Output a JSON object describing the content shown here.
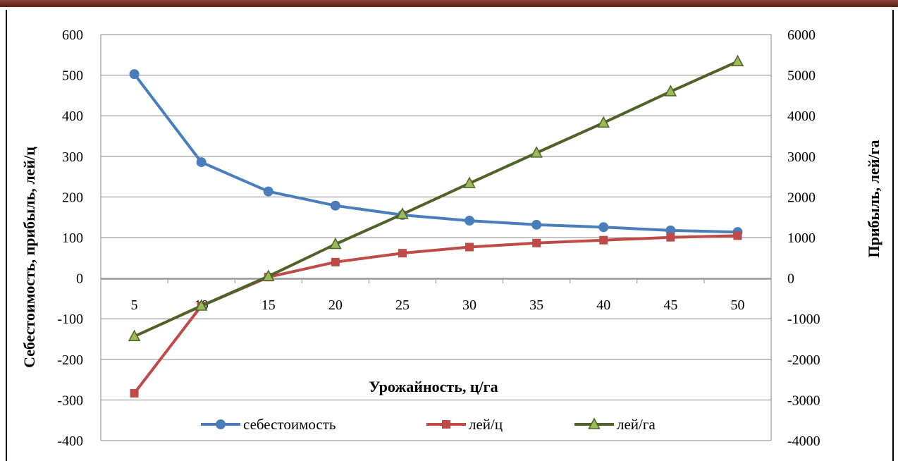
{
  "chart_data": {
    "type": "line",
    "x": [
      5,
      10,
      15,
      20,
      25,
      30,
      35,
      40,
      45,
      50
    ],
    "xlabel": "Урожайность, ц/га",
    "ylabel_left": "Себестоимость, прибыль, лей/ц",
    "ylabel_right": "Прибыль, лей/га",
    "ylim_left": [
      -400,
      600
    ],
    "ylim_right": [
      -4000,
      6000
    ],
    "yticks_left": [
      "600",
      "500",
      "400",
      "300",
      "200",
      "100",
      "0",
      "-100",
      "-200",
      "-300",
      "-400"
    ],
    "yticks_right": [
      "6000",
      "5000",
      "4000",
      "3000",
      "2000",
      "1000",
      "0",
      "-1000",
      "-2000",
      "-3000",
      "-4000"
    ],
    "xticks": [
      "5",
      "10",
      "15",
      "20",
      "25",
      "30",
      "35",
      "40",
      "45",
      "50"
    ],
    "grid": "horizontal",
    "legend_position": "bottom",
    "series": [
      {
        "name": "себестоимость",
        "axis": "left",
        "color": "#4a7ebb",
        "marker": "circle",
        "values": [
          505,
          288,
          216,
          181,
          158,
          144,
          134,
          128,
          120,
          116
        ]
      },
      {
        "name": "лей/ц",
        "axis": "left",
        "color": "#be4b48",
        "marker": "square",
        "values": [
          -281,
          -66,
          5,
          42,
          64,
          79,
          89,
          96,
          103,
          107
        ]
      },
      {
        "name": "лей/га",
        "axis": "right",
        "color": "#4f6228",
        "marker": "triangle",
        "marker_fill": "#9bbb59",
        "values": [
          -1410,
          -660,
          70,
          860,
          1600,
          2360,
          3110,
          3850,
          4620,
          5360
        ]
      }
    ]
  }
}
